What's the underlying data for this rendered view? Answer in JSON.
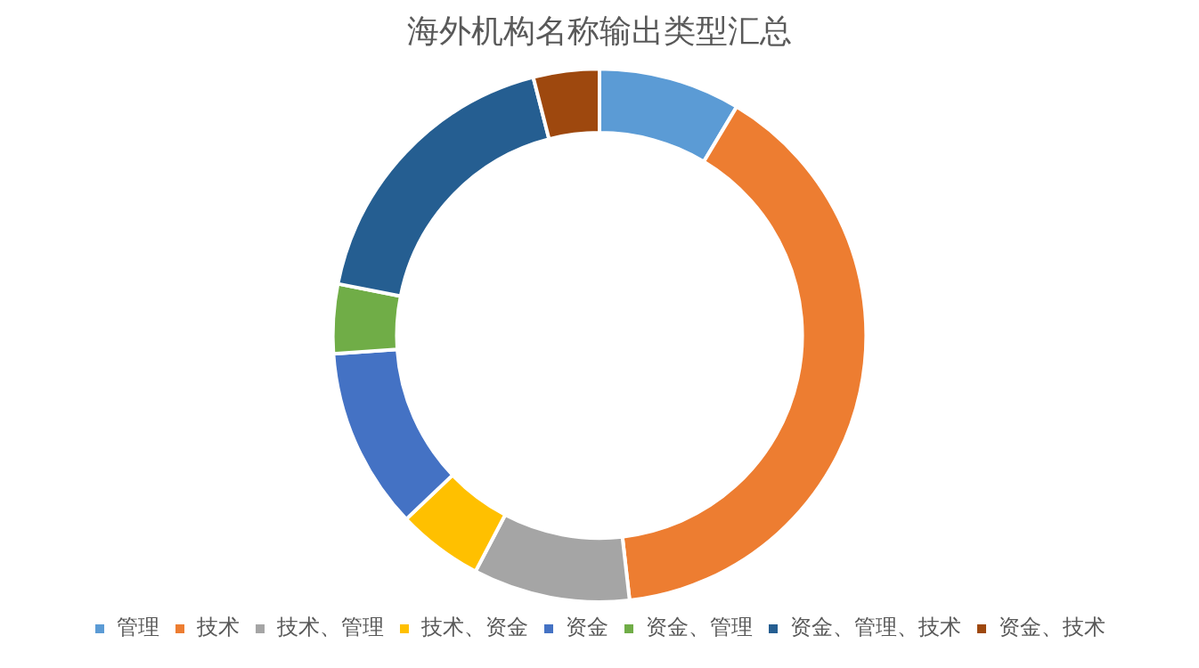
{
  "chart_data": {
    "type": "donut",
    "title": "海外机构名称输出类型汇总",
    "categories": [
      "管理",
      "技术",
      "技术、管理",
      "技术、资金",
      "资金",
      "资金、管理",
      "资金、管理、技术",
      "资金、技术"
    ],
    "values": [
      8.6,
      39.6,
      9.5,
      5.2,
      11.0,
      4.2,
      17.9,
      4.0
    ],
    "colors": [
      "#5b9bd5",
      "#ed7d31",
      "#a5a5a5",
      "#ffc000",
      "#4472c4",
      "#70ad47",
      "#255e91",
      "#9e480e"
    ],
    "legend": "bottom"
  }
}
